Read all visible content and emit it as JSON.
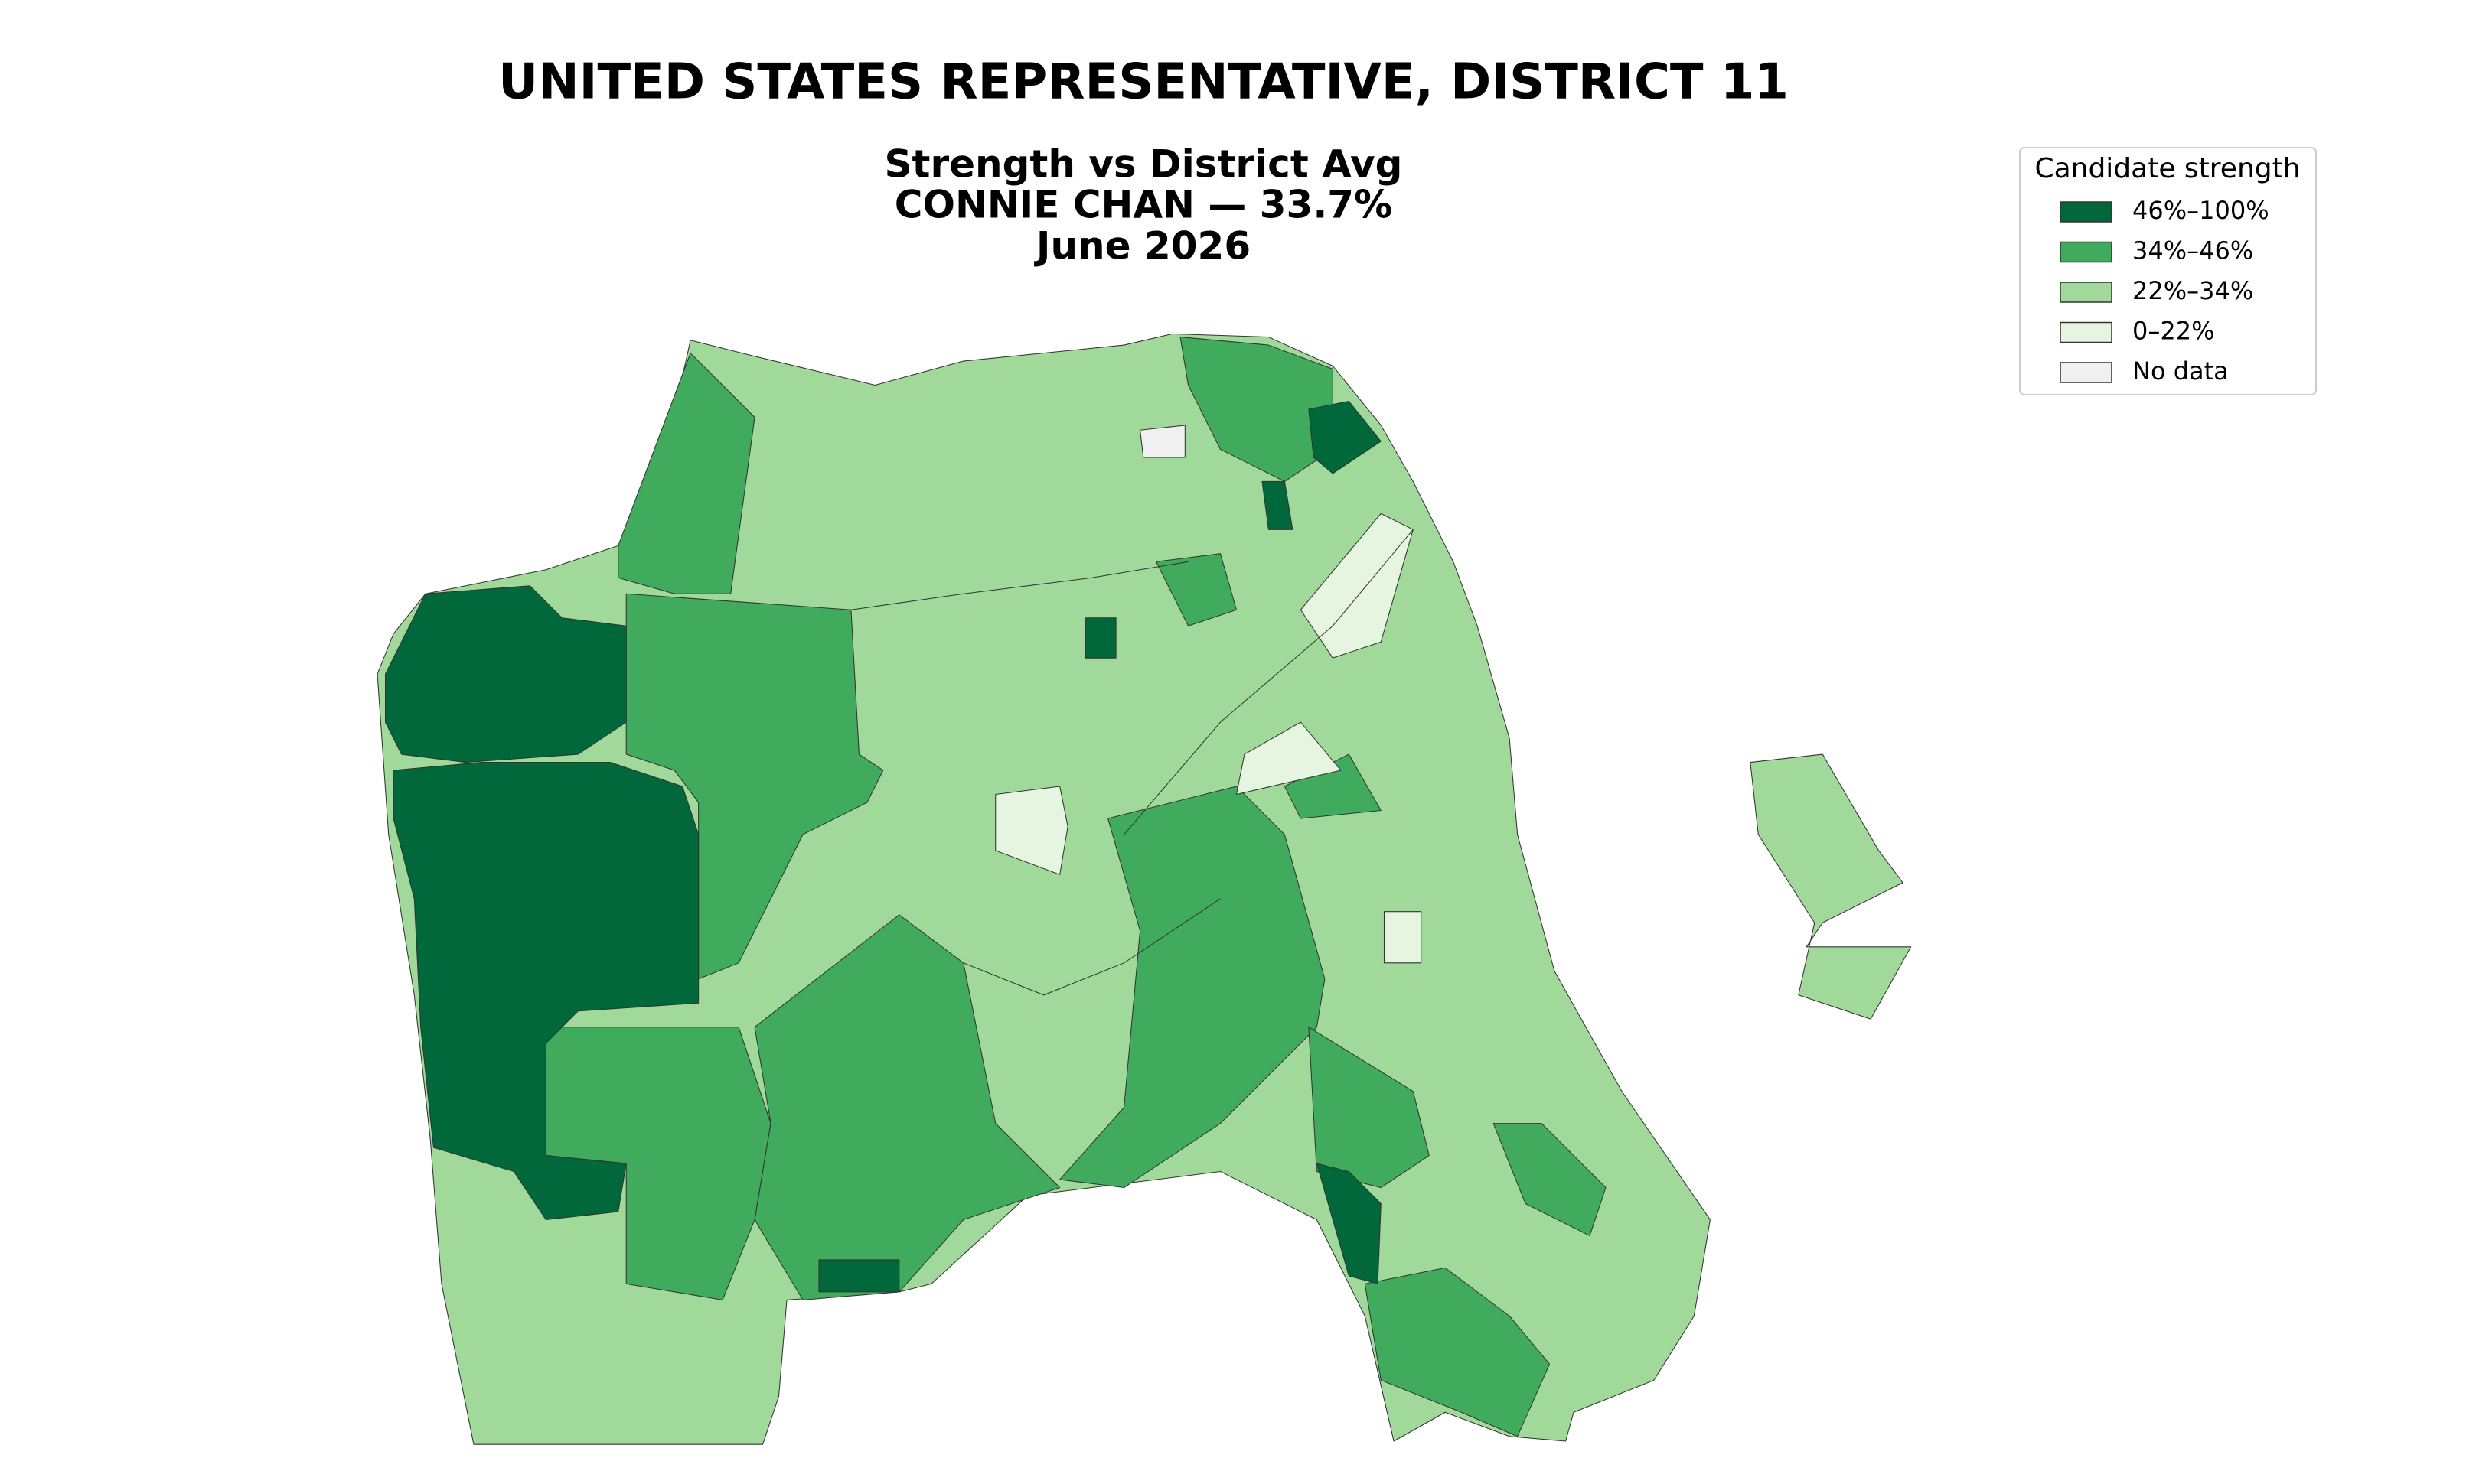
{
  "title": "UNITED STATES REPRESENTATIVE, DISTRICT 11",
  "subtitle": [
    "Strength vs District Avg",
    "CONNIE CHAN — 33.7%",
    "June 2026"
  ],
  "legend": {
    "title": "Candidate strength",
    "entries": [
      {
        "label": "46%–100%",
        "color": "#00683a"
      },
      {
        "label": "34%–46%",
        "color": "#41ab5d"
      },
      {
        "label": "22%–34%",
        "color": "#a1d99b"
      },
      {
        "label": "0–22%",
        "color": "#e5f5e0"
      },
      {
        "label": "No data",
        "color": "#f0f0f0"
      }
    ]
  }
}
